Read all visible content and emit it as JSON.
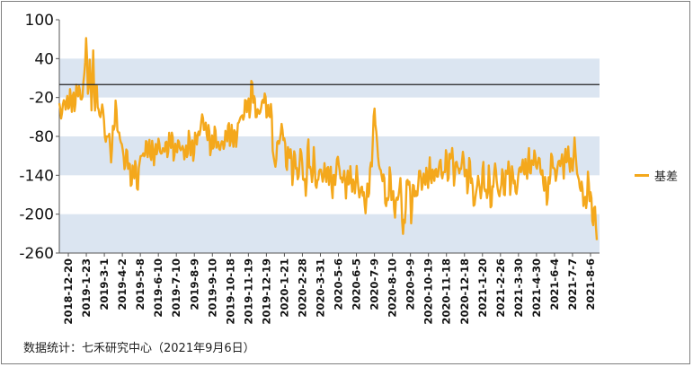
{
  "chart_data": {
    "type": "line",
    "y_ticks": [
      100,
      40,
      -20,
      -80,
      -140,
      -200,
      -260
    ],
    "ylim": [
      -260,
      100
    ],
    "reference_line": 0,
    "bands": [
      [
        -20,
        40
      ],
      [
        -140,
        -80
      ],
      [
        -260,
        -200
      ]
    ],
    "x_ticks": [
      "2018-12-20",
      "2019-1-23",
      "2019-3-1",
      "2019-4-2",
      "2019-5-8",
      "2019-6-10",
      "2019-7-10",
      "2019-8-9",
      "2019-9-10",
      "2019-10-18",
      "2019-11-19",
      "2019-12-19",
      "2020-1-21",
      "2020-2-28",
      "2020-3-31",
      "2020-5-6",
      "2020-6-5",
      "2020-7-9",
      "2020-8-10",
      "2020-9-9",
      "2020-10-19",
      "2020-11-18",
      "2020-12-18",
      "2021-1-20",
      "2021-2-26",
      "2021-3-30",
      "2021-4-30",
      "2021-6-4",
      "2021-7-7",
      "2021-8-6"
    ],
    "series": [
      {
        "name": "基差",
        "color": "#f4a81c",
        "anchors": [
          [
            0,
            -40
          ],
          [
            2,
            -45
          ],
          [
            4,
            -28
          ],
          [
            7,
            -34
          ],
          [
            10,
            -22
          ],
          [
            14,
            -28
          ],
          [
            18,
            -20
          ],
          [
            22,
            -8
          ],
          [
            26,
            -20
          ],
          [
            28,
            10
          ],
          [
            30,
            75
          ],
          [
            32,
            -5
          ],
          [
            34,
            20
          ],
          [
            36,
            -22
          ],
          [
            38,
            40
          ],
          [
            40,
            -30
          ],
          [
            42,
            -10
          ],
          [
            45,
            -50
          ],
          [
            48,
            -35
          ],
          [
            50,
            -60
          ],
          [
            53,
            -90
          ],
          [
            55,
            -70
          ],
          [
            57,
            -110
          ],
          [
            60,
            -80
          ],
          [
            63,
            -40
          ],
          [
            65,
            -55
          ],
          [
            67,
            -80
          ],
          [
            70,
            -95
          ],
          [
            73,
            -120
          ],
          [
            76,
            -110
          ],
          [
            79,
            -135
          ],
          [
            82,
            -145
          ],
          [
            85,
            -125
          ],
          [
            88,
            -155
          ],
          [
            91,
            -110
          ],
          [
            95,
            -105
          ],
          [
            100,
            -95
          ],
          [
            105,
            -110
          ],
          [
            110,
            -95
          ],
          [
            115,
            -102
          ],
          [
            120,
            -98
          ],
          [
            125,
            -85
          ],
          [
            130,
            -105
          ],
          [
            135,
            -90
          ],
          [
            140,
            -110
          ],
          [
            145,
            -90
          ],
          [
            150,
            -100
          ],
          [
            155,
            -80
          ],
          [
            160,
            -55
          ],
          [
            165,
            -70
          ],
          [
            170,
            -95
          ],
          [
            175,
            -80
          ],
          [
            180,
            -100
          ],
          [
            185,
            -85
          ],
          [
            190,
            -72
          ],
          [
            195,
            -85
          ],
          [
            198,
            -80
          ],
          [
            202,
            -55
          ],
          [
            206,
            -45
          ],
          [
            210,
            -30
          ],
          [
            213,
            -35
          ],
          [
            216,
            -5
          ],
          [
            219,
            -30
          ],
          [
            222,
            -50
          ],
          [
            225,
            -40
          ],
          [
            228,
            -20
          ],
          [
            231,
            -30
          ],
          [
            234,
            -45
          ],
          [
            236,
            -38
          ],
          [
            238,
            -60
          ],
          [
            241,
            -130
          ],
          [
            243,
            -110
          ],
          [
            246,
            -85
          ],
          [
            249,
            -65
          ],
          [
            252,
            -90
          ],
          [
            255,
            -120
          ],
          [
            258,
            -100
          ],
          [
            261,
            -135
          ],
          [
            264,
            -110
          ],
          [
            267,
            -150
          ],
          [
            270,
            -100
          ],
          [
            273,
            -140
          ],
          [
            276,
            -160
          ],
          [
            279,
            -95
          ],
          [
            282,
            -145
          ],
          [
            285,
            -115
          ],
          [
            288,
            -160
          ],
          [
            291,
            -130
          ],
          [
            294,
            -145
          ],
          [
            297,
            -130
          ],
          [
            300,
            -145
          ],
          [
            303,
            -130
          ],
          [
            306,
            -165
          ],
          [
            309,
            -140
          ],
          [
            312,
            -110
          ],
          [
            315,
            -150
          ],
          [
            318,
            -135
          ],
          [
            321,
            -165
          ],
          [
            324,
            -135
          ],
          [
            327,
            -150
          ],
          [
            330,
            -160
          ],
          [
            333,
            -135
          ],
          [
            336,
            -175
          ],
          [
            339,
            -150
          ],
          [
            342,
            -195
          ],
          [
            345,
            -165
          ],
          [
            348,
            -150
          ],
          [
            351,
            -90
          ],
          [
            353,
            -25
          ],
          [
            355,
            -85
          ],
          [
            358,
            -120
          ],
          [
            361,
            -140
          ],
          [
            364,
            -155
          ],
          [
            367,
            -190
          ],
          [
            370,
            -145
          ],
          [
            373,
            -165
          ],
          [
            376,
            -200
          ],
          [
            379,
            -170
          ],
          [
            382,
            -150
          ],
          [
            385,
            -235
          ],
          [
            388,
            -180
          ],
          [
            391,
            -140
          ],
          [
            394,
            -195
          ],
          [
            397,
            -160
          ],
          [
            400,
            -175
          ],
          [
            403,
            -135
          ],
          [
            406,
            -155
          ],
          [
            409,
            -140
          ],
          [
            412,
            -150
          ],
          [
            415,
            -125
          ],
          [
            418,
            -150
          ],
          [
            421,
            -130
          ],
          [
            424,
            -140
          ],
          [
            427,
            -120
          ],
          [
            430,
            -145
          ],
          [
            433,
            -115
          ],
          [
            436,
            -135
          ],
          [
            439,
            -100
          ],
          [
            442,
            -140
          ],
          [
            445,
            -120
          ],
          [
            448,
            -140
          ],
          [
            451,
            -110
          ],
          [
            454,
            -130
          ],
          [
            457,
            -150
          ],
          [
            460,
            -125
          ],
          [
            463,
            -165
          ],
          [
            466,
            -185
          ],
          [
            469,
            -140
          ],
          [
            472,
            -170
          ],
          [
            475,
            -130
          ],
          [
            478,
            -175
          ],
          [
            481,
            -145
          ],
          [
            484,
            -185
          ],
          [
            487,
            -130
          ],
          [
            490,
            -145
          ],
          [
            493,
            -175
          ],
          [
            496,
            -140
          ],
          [
            499,
            -160
          ],
          [
            502,
            -125
          ],
          [
            505,
            -150
          ],
          [
            508,
            -135
          ],
          [
            511,
            -170
          ],
          [
            514,
            -140
          ],
          [
            517,
            -130
          ],
          [
            520,
            -120
          ],
          [
            523,
            -140
          ],
          [
            526,
            -110
          ],
          [
            529,
            -135
          ],
          [
            532,
            -105
          ],
          [
            535,
            -125
          ],
          [
            538,
            -120
          ],
          [
            541,
            -140
          ],
          [
            544,
            -160
          ],
          [
            547,
            -170
          ],
          [
            550,
            -130
          ],
          [
            553,
            -115
          ],
          [
            556,
            -145
          ],
          [
            559,
            -125
          ],
          [
            562,
            -110
          ],
          [
            565,
            -135
          ],
          [
            568,
            -100
          ],
          [
            571,
            -120
          ],
          [
            574,
            -130
          ],
          [
            577,
            -90
          ],
          [
            580,
            -140
          ],
          [
            583,
            -150
          ],
          [
            586,
            -170
          ],
          [
            589,
            -185
          ],
          [
            592,
            -155
          ],
          [
            595,
            -170
          ],
          [
            598,
            -210
          ],
          [
            600,
            -195
          ],
          [
            602,
            -240
          ]
        ]
      }
    ]
  },
  "legend": {
    "label": "基差"
  },
  "footer": {
    "source": "数据统计：七禾研究中心（2021年9月6日）"
  }
}
